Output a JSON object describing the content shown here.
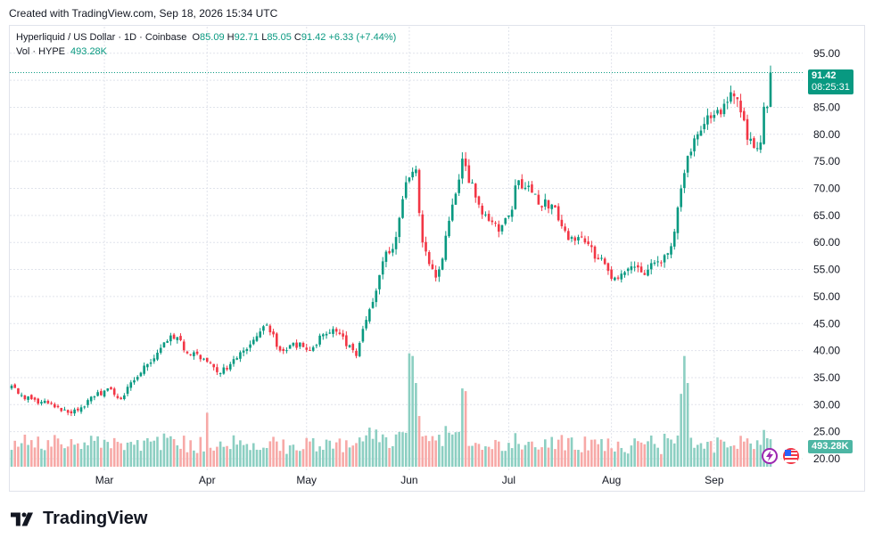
{
  "header": {
    "created_text": "Created with TradingView.com, Sep 18, 2026 15:34 UTC"
  },
  "legend": {
    "symbol": "Hyperliquid / US Dollar · 1D · Coinbase",
    "o_label": "O",
    "o_value": "85.09",
    "h_label": "H",
    "h_value": "92.71",
    "l_label": "L",
    "l_value": "85.05",
    "c_label": "C",
    "c_value": "91.42",
    "change": "+6.33 (+7.44%)",
    "vol_label": "Vol · HYPE",
    "vol_value": "493.28K"
  },
  "price_tag": {
    "price": "91.42",
    "countdown": "08:25:31"
  },
  "volume_tag": "493.28K",
  "colors": {
    "up": "#089981",
    "down": "#f23645",
    "vol_up": "#8ccfc2",
    "vol_down": "#f7a9a7",
    "grid": "#e0e3eb"
  },
  "brand": {
    "name": "TradingView"
  },
  "chart_data": {
    "type": "candlestick",
    "title": "Hyperliquid / US Dollar · 1D · Coinbase",
    "ylim": [
      20,
      97
    ],
    "y_ticks": [
      "20.00",
      "25.00",
      "30.00",
      "35.00",
      "40.00",
      "45.00",
      "50.00",
      "55.00",
      "60.00",
      "65.00",
      "70.00",
      "75.00",
      "80.00",
      "85.00",
      "90.00",
      "95.00"
    ],
    "x_ticks": [
      "Mar",
      "Apr",
      "May",
      "Jun",
      "Jul",
      "Aug",
      "Sep"
    ],
    "x_tick_dates": [
      "2026-03-01",
      "2026-04-01",
      "2026-05-01",
      "2026-06-01",
      "2026-07-01",
      "2026-08-01",
      "2026-09-01"
    ],
    "start_date": "2026-02-01",
    "end_date": "2026-09-18",
    "close_keypoints": [
      [
        "2026-02-01",
        33.5
      ],
      [
        "2026-02-05",
        31.0
      ],
      [
        "2026-02-10",
        30.5
      ],
      [
        "2026-02-14",
        29.5
      ],
      [
        "2026-02-18",
        28.5
      ],
      [
        "2026-02-22",
        29.5
      ],
      [
        "2026-02-26",
        31.5
      ],
      [
        "2026-03-02",
        33.0
      ],
      [
        "2026-03-06",
        31.0
      ],
      [
        "2026-03-10",
        34.5
      ],
      [
        "2026-03-14",
        37.5
      ],
      [
        "2026-03-19",
        41.5
      ],
      [
        "2026-03-23",
        42.5
      ],
      [
        "2026-03-26",
        39.5
      ],
      [
        "2026-03-31",
        38.5
      ],
      [
        "2026-04-04",
        36.0
      ],
      [
        "2026-04-08",
        37.5
      ],
      [
        "2026-04-12",
        40.0
      ],
      [
        "2026-04-15",
        42.0
      ],
      [
        "2026-04-18",
        44.5
      ],
      [
        "2026-04-21",
        43.0
      ],
      [
        "2026-04-23",
        40.0
      ],
      [
        "2026-04-26",
        41.0
      ],
      [
        "2026-04-29",
        41.5
      ],
      [
        "2026-05-02",
        40.0
      ],
      [
        "2026-05-06",
        43.0
      ],
      [
        "2026-05-10",
        43.5
      ],
      [
        "2026-05-14",
        41.0
      ],
      [
        "2026-05-16",
        39.0
      ],
      [
        "2026-05-18",
        44.0
      ],
      [
        "2026-05-21",
        49.0
      ],
      [
        "2026-05-24",
        56.5
      ],
      [
        "2026-05-26",
        58.0
      ],
      [
        "2026-05-28",
        61.0
      ],
      [
        "2026-05-30",
        68.0
      ],
      [
        "2026-06-01",
        72.0
      ],
      [
        "2026-06-03",
        73.5
      ],
      [
        "2026-06-05",
        60.0
      ],
      [
        "2026-06-07",
        56.0
      ],
      [
        "2026-06-09",
        53.5
      ],
      [
        "2026-06-11",
        57.0
      ],
      [
        "2026-06-13",
        64.0
      ],
      [
        "2026-06-15",
        69.0
      ],
      [
        "2026-06-17",
        75.5
      ],
      [
        "2026-06-19",
        71.0
      ],
      [
        "2026-06-22",
        67.0
      ],
      [
        "2026-06-25",
        64.0
      ],
      [
        "2026-06-28",
        62.0
      ],
      [
        "2026-07-01",
        65.0
      ],
      [
        "2026-07-04",
        71.5
      ],
      [
        "2026-07-07",
        70.5
      ],
      [
        "2026-07-10",
        67.0
      ],
      [
        "2026-07-14",
        67.0
      ],
      [
        "2026-07-17",
        63.0
      ],
      [
        "2026-07-20",
        61.0
      ],
      [
        "2026-07-24",
        60.0
      ],
      [
        "2026-07-27",
        57.0
      ],
      [
        "2026-07-30",
        56.0
      ],
      [
        "2026-08-02",
        53.5
      ],
      [
        "2026-08-05",
        54.5
      ],
      [
        "2026-08-08",
        55.5
      ],
      [
        "2026-08-11",
        54.0
      ],
      [
        "2026-08-15",
        56.5
      ],
      [
        "2026-08-18",
        58.0
      ],
      [
        "2026-08-20",
        62.0
      ],
      [
        "2026-08-22",
        70.0
      ],
      [
        "2026-08-24",
        76.0
      ],
      [
        "2026-08-27",
        80.0
      ],
      [
        "2026-08-30",
        83.5
      ],
      [
        "2026-09-02",
        84.5
      ],
      [
        "2026-09-05",
        86.0
      ],
      [
        "2026-09-08",
        86.5
      ],
      [
        "2026-09-11",
        79.0
      ],
      [
        "2026-09-13",
        77.5
      ],
      [
        "2026-09-15",
        78.5
      ],
      [
        "2026-09-16",
        85.1
      ],
      [
        "2026-09-17",
        85.09
      ],
      [
        "2026-09-18",
        91.42
      ]
    ],
    "last_candle": {
      "date": "2026-09-18",
      "open": 85.09,
      "high": 92.71,
      "low": 85.05,
      "close": 91.42,
      "volume": "493.28K"
    },
    "volume_spikes": [
      [
        "2026-04-01",
        28.5
      ],
      [
        "2026-06-01",
        39.5
      ],
      [
        "2026-06-02",
        39.0
      ],
      [
        "2026-06-03",
        34.0
      ],
      [
        "2026-06-17",
        33.0
      ],
      [
        "2026-06-18",
        32.5
      ],
      [
        "2026-08-22",
        32.0
      ],
      [
        "2026-08-23",
        39.0
      ],
      [
        "2026-08-24",
        34.0
      ]
    ]
  }
}
